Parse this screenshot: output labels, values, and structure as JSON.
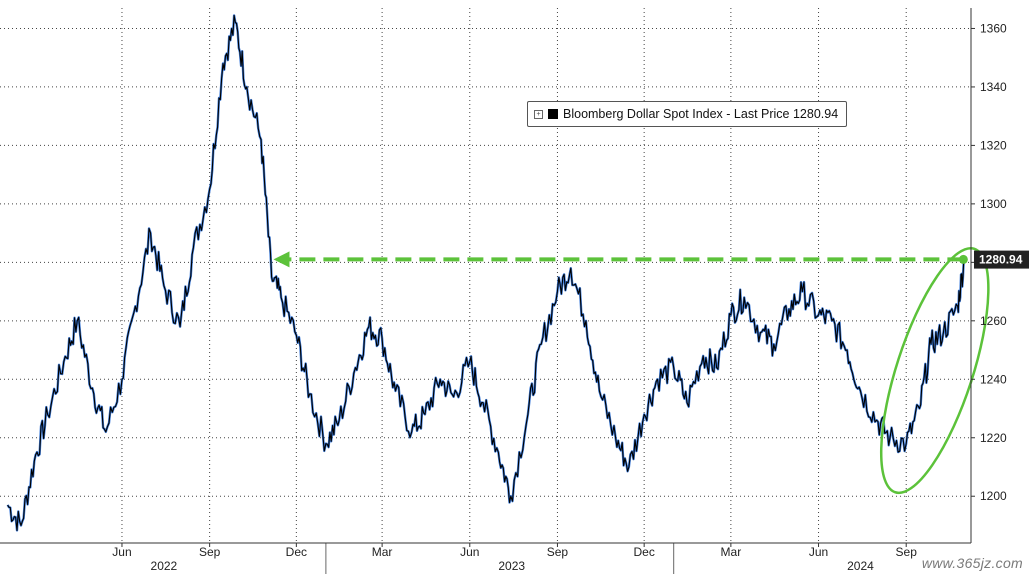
{
  "chart_data": {
    "type": "line",
    "series": [
      {
        "name": "Bloomberg Dollar Spot Index",
        "legend_label": "Bloomberg Dollar Spot Index - Last Price 1280.94",
        "last_price": "1280.94",
        "color": "#000000",
        "highlight_color": "#2a6fd6",
        "x": [
          "2022-02-01",
          "2022-02-15",
          "2022-03-01",
          "2022-03-15",
          "2022-04-01",
          "2022-04-15",
          "2022-05-01",
          "2022-05-15",
          "2022-06-01",
          "2022-06-15",
          "2022-07-01",
          "2022-07-15",
          "2022-08-01",
          "2022-08-15",
          "2022-09-01",
          "2022-09-15",
          "2022-09-28",
          "2022-10-10",
          "2022-10-25",
          "2022-11-05",
          "2022-11-15",
          "2022-12-01",
          "2022-12-15",
          "2023-01-01",
          "2023-01-15",
          "2023-02-01",
          "2023-02-15",
          "2023-03-01",
          "2023-03-15",
          "2023-04-01",
          "2023-04-15",
          "2023-05-01",
          "2023-05-15",
          "2023-06-01",
          "2023-06-15",
          "2023-07-01",
          "2023-07-14",
          "2023-08-01",
          "2023-08-15",
          "2023-09-01",
          "2023-09-15",
          "2023-10-01",
          "2023-10-15",
          "2023-11-01",
          "2023-11-15",
          "2023-12-01",
          "2023-12-15",
          "2024-01-01",
          "2024-01-15",
          "2024-02-01",
          "2024-02-15",
          "2024-03-01",
          "2024-03-15",
          "2024-04-01",
          "2024-04-15",
          "2024-05-01",
          "2024-05-15",
          "2024-06-01",
          "2024-06-15",
          "2024-07-01",
          "2024-07-15",
          "2024-08-01",
          "2024-08-15",
          "2024-09-01",
          "2024-09-15",
          "2024-09-27",
          "2024-10-10",
          "2024-10-25",
          "2024-11-01"
        ],
        "values": [
          1197,
          1190,
          1212,
          1228,
          1246,
          1260,
          1237,
          1222,
          1240,
          1265,
          1290,
          1272,
          1258,
          1285,
          1305,
          1348,
          1362,
          1340,
          1322,
          1275,
          1268,
          1255,
          1235,
          1218,
          1226,
          1244,
          1258,
          1254,
          1236,
          1222,
          1228,
          1240,
          1234,
          1246,
          1232,
          1215,
          1200,
          1228,
          1252,
          1270,
          1278,
          1260,
          1236,
          1220,
          1210,
          1228,
          1240,
          1244,
          1232,
          1248,
          1244,
          1262,
          1268,
          1256,
          1252,
          1264,
          1270,
          1262,
          1260,
          1250,
          1236,
          1226,
          1220,
          1218,
          1230,
          1252,
          1256,
          1265,
          1280.94
        ]
      }
    ],
    "x_tick_labels": [
      "Jun",
      "Sep",
      "Dec",
      "Mar",
      "Jun",
      "Sep",
      "Dec",
      "Mar",
      "Jun",
      "Sep"
    ],
    "x_tick_dates": [
      "2022-06-01",
      "2022-09-01",
      "2022-12-01",
      "2023-03-01",
      "2023-06-01",
      "2023-09-01",
      "2023-12-01",
      "2024-03-01",
      "2024-06-01",
      "2024-09-01"
    ],
    "year_labels": [
      "2022",
      "2023",
      "2024"
    ],
    "year_label_dates": [
      "2022-07-15",
      "2023-07-15",
      "2024-07-15"
    ],
    "year_boundary_dates": [
      "2023-01-01",
      "2024-01-01"
    ],
    "yticks": [
      1200,
      1220,
      1240,
      1260,
      1280,
      1300,
      1320,
      1340,
      1360
    ],
    "ylim": [
      1184,
      1367
    ],
    "xlim": [
      "2022-01-24",
      "2024-11-08"
    ],
    "grid": true,
    "legend_placement": "top-center",
    "annotations": {
      "dashed_arrow_level": 1281,
      "arrow_color": "#5cc23a",
      "arrow_from_date": "2024-10-31",
      "arrow_to_date": "2022-11-07",
      "ellipse_center_date": "2024-10-01",
      "ellipse_center_value": 1243,
      "ellipse_color": "#5cc23a"
    },
    "price_label_bg": "#222222",
    "title": "",
    "xlabel": "",
    "ylabel": ""
  },
  "watermark": "www.365jz.com"
}
